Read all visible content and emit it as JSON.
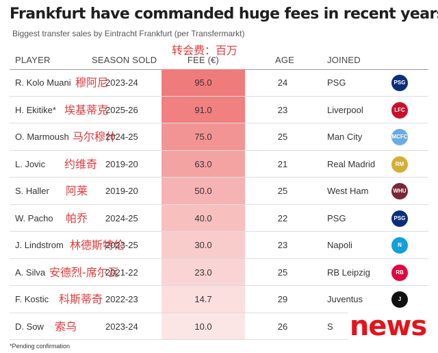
{
  "title": "Frankfurt have commanded huge fees in recent years",
  "subtitle": "Biggest transfer sales by Eintracht Frankfurt (per Transfermarkt)",
  "annotation_cn": "转会费：百万",
  "headers": {
    "player": "PLAYER",
    "season": "SEASON SOLD",
    "fee": "FEE (€)",
    "age": "AGE",
    "joined": "JOINED"
  },
  "colors": {
    "fee_max": "#f07b7b",
    "fee_min": "#fdf1f1",
    "cn_text": "#e23a3a",
    "news": "#e4141b"
  },
  "chart_data": {
    "type": "table",
    "columns": [
      "PLAYER",
      "SEASON SOLD",
      "FEE (€)",
      "AGE",
      "JOINED"
    ],
    "rows": [
      {
        "player": "R. Kolo Muani",
        "player_cn": "穆阿尼",
        "season": "2023-24",
        "fee": 95.0,
        "fee_label": "95.0",
        "age": "24",
        "joined": "PSG",
        "badge_icon": "psg-badge-icon",
        "badge_text": "PSG",
        "badge_color": "#0c2e7a"
      },
      {
        "player": "H. Ekitike*",
        "player_cn": "埃基蒂克",
        "season": "2025-26",
        "fee": 91.0,
        "fee_label": "91.0",
        "age": "23",
        "joined": "Liverpool",
        "badge_icon": "liverpool-badge-icon",
        "badge_text": "LFC",
        "badge_color": "#c8102e"
      },
      {
        "player": "O. Marmoush",
        "player_cn": "马尔穆什",
        "season": "2024-25",
        "fee": 75.0,
        "fee_label": "75.0",
        "age": "25",
        "joined": "Man City",
        "badge_icon": "man-city-badge-icon",
        "badge_text": "MCFC",
        "badge_color": "#6cabdd"
      },
      {
        "player": "L. Jovic",
        "player_cn": "约维奇",
        "season": "2019-20",
        "fee": 63.0,
        "fee_label": "63.0",
        "age": "21",
        "joined": "Real Madrid",
        "badge_icon": "real-madrid-badge-icon",
        "badge_text": "RM",
        "badge_color": "#d4af37"
      },
      {
        "player": "S. Haller",
        "player_cn": "阿莱",
        "season": "2019-20",
        "fee": 50.0,
        "fee_label": "50.0",
        "age": "25",
        "joined": "West Ham",
        "badge_icon": "west-ham-badge-icon",
        "badge_text": "WHU",
        "badge_color": "#7a263a"
      },
      {
        "player": "W. Pacho",
        "player_cn": "帕乔",
        "season": "2024-25",
        "fee": 40.0,
        "fee_label": "40.0",
        "age": "22",
        "joined": "PSG",
        "badge_icon": "psg-badge-icon",
        "badge_text": "PSG",
        "badge_color": "#0c2e7a"
      },
      {
        "player": "J. Lindstrom",
        "player_cn": "林德斯特伦",
        "season": "2023-25",
        "fee": 30.0,
        "fee_label": "30.0",
        "age": "23",
        "joined": "Napoli",
        "badge_icon": "napoli-badge-icon",
        "badge_text": "N",
        "badge_color": "#12a0d7"
      },
      {
        "player": "A. Silva",
        "player_cn": "安德烈-席尔瓦",
        "season": "2021-22",
        "fee": 23.0,
        "fee_label": "23.0",
        "age": "25",
        "joined": "RB Leipzig",
        "badge_icon": "rb-leipzig-badge-icon",
        "badge_text": "RB",
        "badge_color": "#dd0741"
      },
      {
        "player": "F. Kostic",
        "player_cn": "科斯蒂奇",
        "season": "2022-23",
        "fee": 14.7,
        "fee_label": "14.7",
        "age": "29",
        "joined": "Juventus",
        "badge_icon": "juventus-badge-icon",
        "badge_text": "J",
        "badge_color": "#111111"
      },
      {
        "player": "D. Sow",
        "player_cn": "索乌",
        "season": "2023-24",
        "fee": 10.0,
        "fee_label": "10.0",
        "age": "26",
        "joined": "S",
        "badge_icon": "",
        "badge_text": "",
        "badge_color": ""
      }
    ]
  },
  "footnote": "*Pending confirmation",
  "watermark": "news"
}
